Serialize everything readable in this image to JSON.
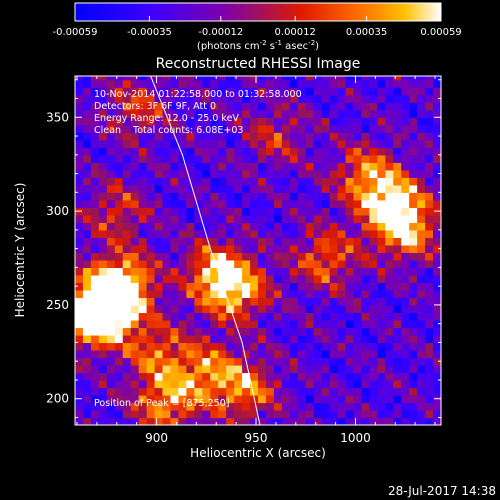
{
  "chart_data": {
    "type": "heatmap",
    "title": "Reconstructed RHESSI Image",
    "xlabel": "Heliocentric X (arcsec)",
    "ylabel": "Heliocentric Y (arcsec)",
    "xlim": [
      859,
      1043
    ],
    "ylim": [
      186,
      372
    ],
    "xticks": [
      900,
      950,
      1000
    ],
    "yticks": [
      200,
      250,
      300,
      350
    ],
    "colorbar": {
      "min": -0.00059,
      "max": 0.00059,
      "tick_values": [
        -0.00059,
        -0.00035,
        -0.00012,
        0.00012,
        0.00035,
        0.00059
      ],
      "tick_labels": [
        "-0.00059",
        "-0.00035",
        "-0.00012",
        "0.00012",
        "0.00035",
        "0.00059"
      ],
      "label": "(photons cm",
      "label_exp1": "-2",
      "label_mid": " s",
      "label_exp2": "-1",
      "label_end": " asec",
      "label_exp3": "-2",
      "label_close": ")"
    },
    "annotations": [
      "10-Nov-2014 01:22:58.000 to 01:32:58.000",
      "Detectors: 3F 6F 9F, Att 0",
      "Energy Range: 12.0 - 25.0 keV",
      "Clean    Total counts: 6.08E+03"
    ],
    "peak_label": "Position of Peak = [875,250]",
    "peak": [
      875,
      250
    ],
    "limb_curve": [
      [
        897,
        372
      ],
      [
        913,
        330
      ],
      [
        927,
        280
      ],
      [
        943,
        230
      ],
      [
        952,
        186
      ]
    ],
    "hotspots": [
      {
        "x": 875,
        "y": 250,
        "v": 1.0
      },
      {
        "x": 883,
        "y": 262,
        "v": 0.85
      },
      {
        "x": 868,
        "y": 243,
        "v": 0.8
      },
      {
        "x": 940,
        "y": 258,
        "v": 0.75
      },
      {
        "x": 930,
        "y": 268,
        "v": 0.7
      },
      {
        "x": 1018,
        "y": 305,
        "v": 0.8
      },
      {
        "x": 1025,
        "y": 290,
        "v": 0.75
      },
      {
        "x": 1005,
        "y": 320,
        "v": 0.6
      },
      {
        "x": 985,
        "y": 275,
        "v": 0.6
      },
      {
        "x": 905,
        "y": 198,
        "v": 0.7
      },
      {
        "x": 945,
        "y": 205,
        "v": 0.65
      },
      {
        "x": 925,
        "y": 215,
        "v": 0.6
      },
      {
        "x": 900,
        "y": 225,
        "v": 0.55
      },
      {
        "x": 890,
        "y": 355,
        "v": 0.45
      },
      {
        "x": 960,
        "y": 340,
        "v": 0.4
      },
      {
        "x": 880,
        "y": 300,
        "v": 0.45
      }
    ]
  },
  "footer": {
    "timestamp": "28-Jul-2017 14:38"
  }
}
